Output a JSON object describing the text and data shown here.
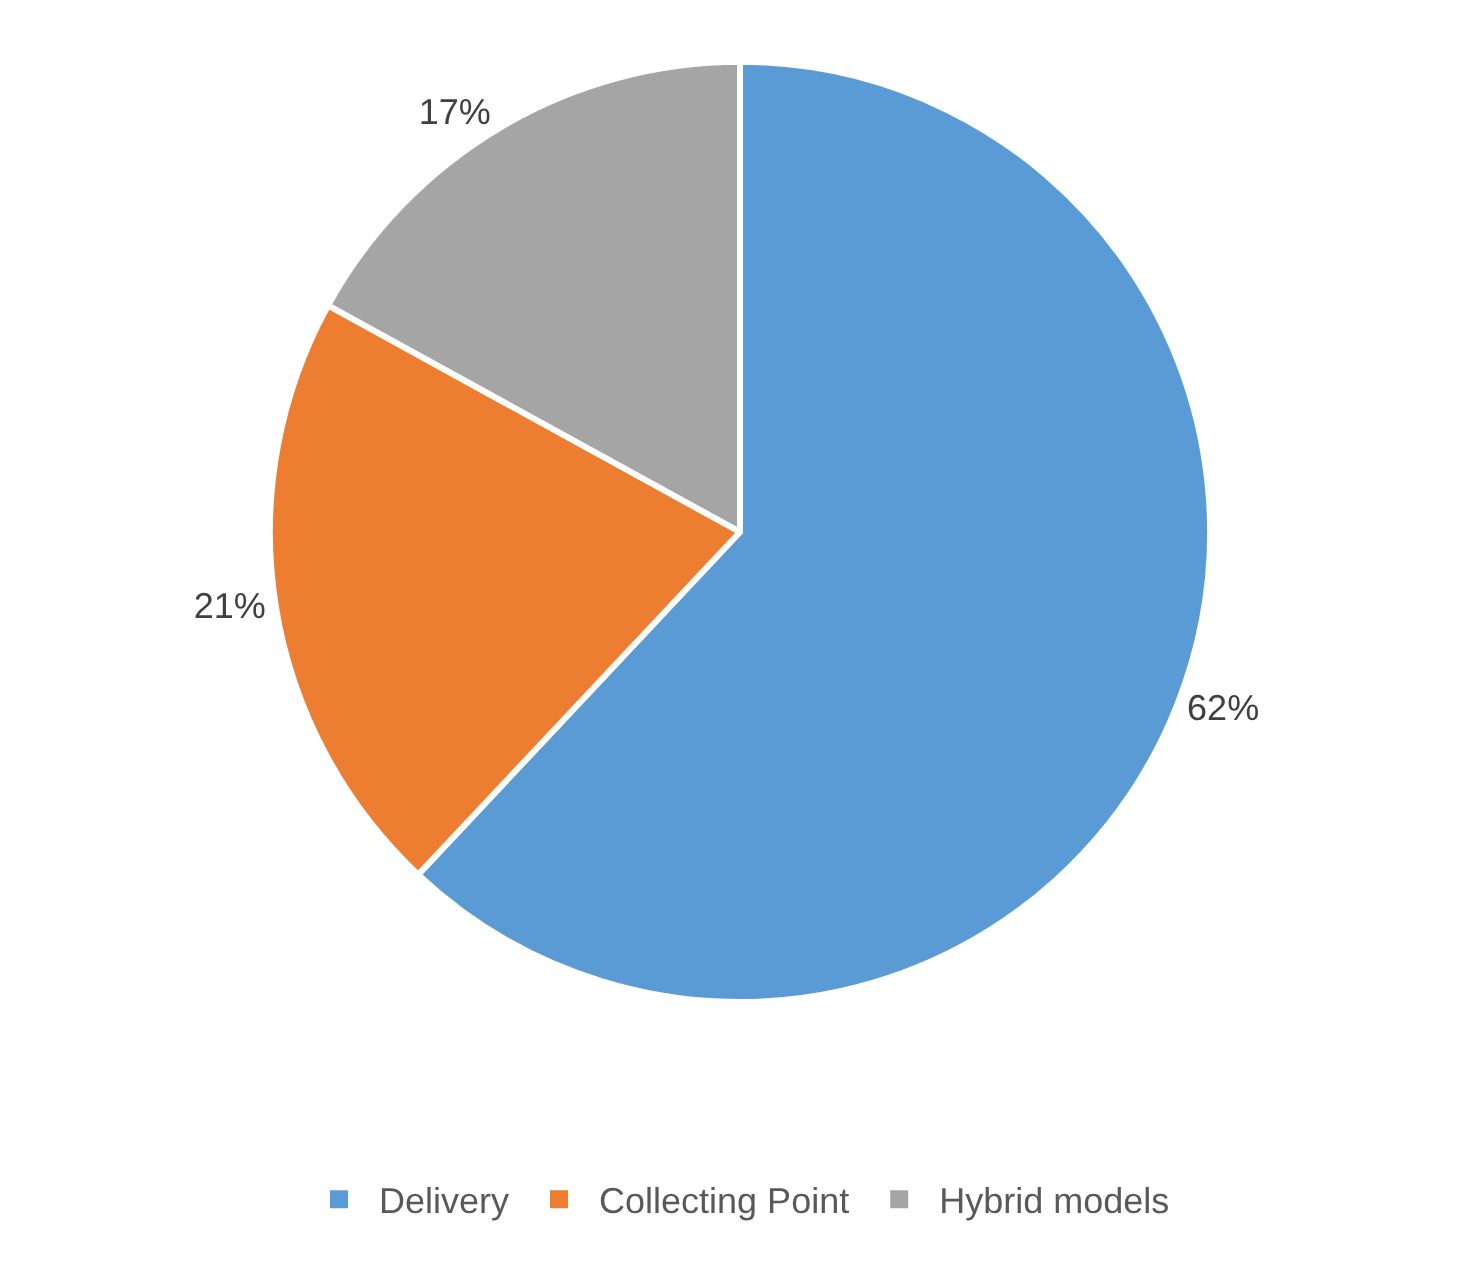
{
  "chart_data": {
    "type": "pie",
    "categories": [
      "Delivery",
      "Collecting Point",
      "Hybrid models"
    ],
    "values": [
      62,
      21,
      17
    ],
    "colors": [
      "#5b9bd5",
      "#ed7d31",
      "#a5a5a5"
    ],
    "value_labels": [
      "62%",
      "21%",
      "17%"
    ],
    "legend": "bottom"
  }
}
